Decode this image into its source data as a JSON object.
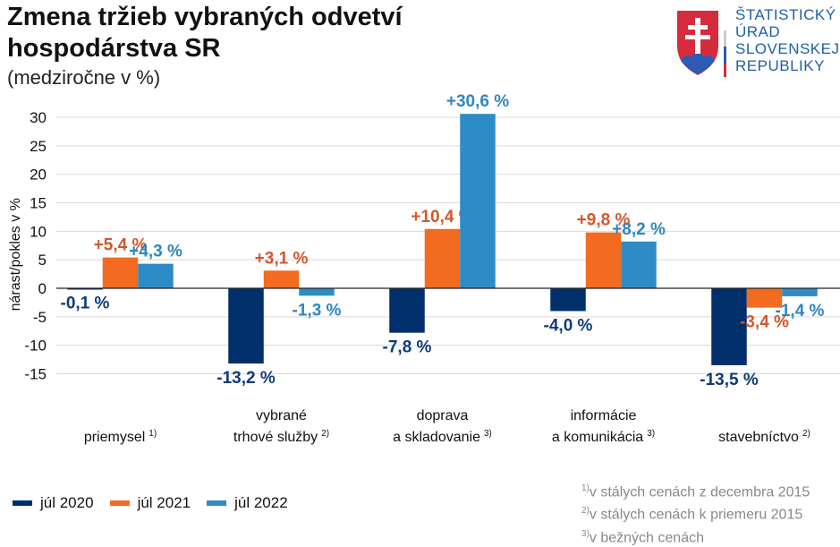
{
  "header": {
    "title_line1": "Zmena tržieb vybraných odvetví",
    "title_line2": "hospodárstva SR",
    "subtitle": "(medziročne v %)"
  },
  "logo": {
    "lines": [
      "ŠTATISTICKÝ",
      "ÚRAD",
      "SLOVENSKEJ",
      "REPUBLIKY"
    ],
    "icon": "slovak-coat-of-arms"
  },
  "colors": {
    "jul2020": "#002f6c",
    "jul2021": "#f26b21",
    "jul2022": "#2e8bc6",
    "label2020": "#0f3a7a",
    "label2021": "#d4562a",
    "label2022": "#2e86c1"
  },
  "chart_data": {
    "type": "bar",
    "title": "Zmena tržieb vybraných odvetví hospodárstva SR",
    "subtitle": "(medziročne v %)",
    "ylabel": "nárast/pokles v %",
    "xlabel": "",
    "ylim": [
      -15,
      30
    ],
    "yticks": [
      30,
      25,
      20,
      15,
      10,
      5,
      0,
      -5,
      -10,
      -15
    ],
    "grid": true,
    "legend_position": "bottom-left",
    "categories": [
      {
        "lines": [
          "priemysel"
        ],
        "note": "1)"
      },
      {
        "lines": [
          "vybrané",
          "trhové služby"
        ],
        "note": "2)"
      },
      {
        "lines": [
          "doprava",
          "a skladovanie"
        ],
        "note": "3)"
      },
      {
        "lines": [
          "informácie",
          "a komunikácia"
        ],
        "note": "3)"
      },
      {
        "lines": [
          "stavebníctvo"
        ],
        "note": "2)"
      }
    ],
    "series": [
      {
        "name": "júl 2020",
        "values": [
          -0.1,
          -13.2,
          -7.8,
          -4.0,
          -13.5
        ],
        "labels": [
          "-0,1 %",
          "-13,2 %",
          "-7,8 %",
          "-4,0 %",
          "-13,5 %"
        ]
      },
      {
        "name": "júl 2021",
        "values": [
          5.4,
          3.1,
          10.4,
          9.8,
          -3.4
        ],
        "labels": [
          "+5,4 %",
          "+3,1 %",
          "+10,4 %",
          "+9,8 %",
          "-3,4 %"
        ]
      },
      {
        "name": "júl 2022",
        "values": [
          4.3,
          -1.3,
          30.6,
          8.2,
          -1.4
        ],
        "labels": [
          "+4,3 %",
          "-1,3 %",
          "+30,6 %",
          "+8,2 %",
          "-1,4 %"
        ]
      }
    ]
  },
  "footnotes": [
    {
      "mark": "1)",
      "text": "v stálych cenách z decembra 2015"
    },
    {
      "mark": "2)",
      "text": "v stálych cenách k priemeru 2015"
    },
    {
      "mark": "3)",
      "text": "v bežných cenách"
    }
  ]
}
